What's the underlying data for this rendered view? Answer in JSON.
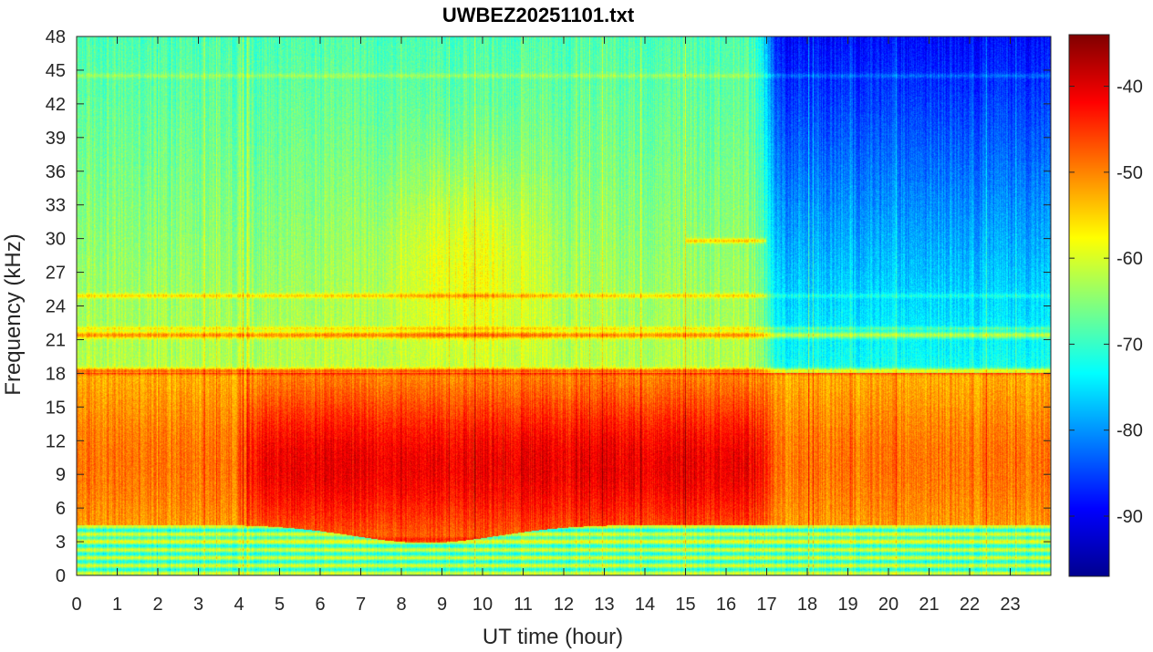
{
  "chart_data": {
    "type": "heatmap",
    "title": "UWBEZ20251101.txt",
    "xlabel": "UT time (hour)",
    "ylabel": "Frequency (kHz)",
    "xlim": [
      0,
      24
    ],
    "ylim": [
      0,
      48
    ],
    "x_ticks": [
      "0",
      "1",
      "2",
      "3",
      "4",
      "5",
      "6",
      "7",
      "8",
      "9",
      "10",
      "11",
      "12",
      "13",
      "14",
      "15",
      "16",
      "17",
      "18",
      "19",
      "20",
      "21",
      "22",
      "23"
    ],
    "y_ticks": [
      "0",
      "3",
      "6",
      "9",
      "12",
      "15",
      "18",
      "21",
      "24",
      "27",
      "30",
      "33",
      "36",
      "39",
      "42",
      "45",
      "48"
    ],
    "colorbar": {
      "colormap": "jet",
      "range": [
        -97,
        -34
      ],
      "ticks": [
        "-90",
        "-80",
        "-70",
        "-60",
        "-50",
        "-40"
      ]
    },
    "features": [
      {
        "name": "daytime broadband emission",
        "time_range": [
          4,
          17
        ],
        "freq_range": [
          4,
          18
        ],
        "level": -45
      },
      {
        "name": "night-side high-frequency background",
        "time_range": [
          17,
          24
        ],
        "freq_range": [
          25,
          48
        ],
        "level": -80
      },
      {
        "name": "transmitter line",
        "freq": 18.2,
        "level": -40
      },
      {
        "name": "transmitter line",
        "freq": 21.4,
        "level": -42
      },
      {
        "name": "transmitter line",
        "freq": 24.9,
        "level": -48
      },
      {
        "name": "transmitter line",
        "freq": 29.8,
        "level": -52
      }
    ]
  }
}
